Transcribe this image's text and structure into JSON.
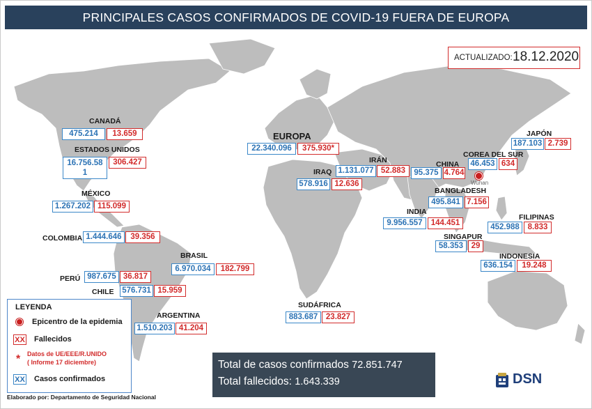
{
  "header": {
    "title": "PRINCIPALES CASOS CONFIRMADOS DE COVID-19 FUERA DE EUROPA"
  },
  "update": {
    "label": "ACTUALIZADO:",
    "date": "18.12.2020"
  },
  "regions": {
    "canada": {
      "name": "CANADÁ",
      "cases": "475.214",
      "deaths": "13.659"
    },
    "usa": {
      "name": "ESTADOS UNIDOS",
      "cases": "16.756.58",
      "cases_cont": "1",
      "deaths": "306.427"
    },
    "mexico": {
      "name": "MÉXICO",
      "cases": "1.267.202",
      "deaths": "115.099"
    },
    "colombia": {
      "name": "COLOMBIA",
      "cases": "1.444.646",
      "deaths": "39.356"
    },
    "brasil": {
      "name": "BRASIL",
      "cases": "6.970.034",
      "deaths": "182.799"
    },
    "peru": {
      "name": "PERÚ",
      "cases": "987.675",
      "deaths": "36.817"
    },
    "chile": {
      "name": "CHILE",
      "cases": "576.731",
      "deaths": "15.959"
    },
    "argentina": {
      "name": "ARGENTINA",
      "cases": "1.510.203",
      "deaths": "41.204"
    },
    "europa": {
      "name": "EUROPA",
      "cases": "22.340.096",
      "deaths": "375.930*"
    },
    "iraq": {
      "name": "IRAQ",
      "cases": "578.916",
      "deaths": "12.636"
    },
    "iran": {
      "name": "IRÁN",
      "cases": "1.131.077",
      "deaths": "52.883"
    },
    "sudafrica": {
      "name": "SUDÁFRICA",
      "cases": "883.687",
      "deaths": "23.827"
    },
    "china": {
      "name": "CHINA",
      "cases": "95.375",
      "deaths": "4.764"
    },
    "corea": {
      "name": "COREA DEL SUR",
      "cases": "46.453",
      "deaths": "634"
    },
    "japon": {
      "name": "JAPÓN",
      "cases": "187.103",
      "deaths": "2.739"
    },
    "bangladesh": {
      "name": "BANGLADESH",
      "cases": "495.841",
      "deaths": "7.156"
    },
    "india": {
      "name": "INDIA",
      "cases": "9.956.557",
      "deaths": "144.451"
    },
    "filipinas": {
      "name": "FILIPINAS",
      "cases": "452.988",
      "deaths": "8.833"
    },
    "singapur": {
      "name": "SINGAPUR",
      "cases": "58.353",
      "deaths": "29"
    },
    "indonesia": {
      "name": "INDONESIA",
      "cases": "636.154",
      "deaths": "19.248"
    }
  },
  "epicenter_label": "Wuhan",
  "legend": {
    "title": "LEYENDA",
    "epicenter": "Epicentro de la epidemia",
    "deaths_swatch": "XX",
    "deaths": "Fallecidos",
    "asterisk": "*",
    "note_line1": "Datos de UE/EEE/R.UNIDO",
    "note_line2": "( Informe 17 diciembre)",
    "cases_swatch": "XX",
    "cases": "Casos confirmados"
  },
  "totals": {
    "cases_label": "Total de casos confirmados",
    "cases_value": "72.851.747",
    "deaths_label": "Total fallecidos:",
    "deaths_value": "1.643.339"
  },
  "footer": {
    "credit": "Elaborado por: Departamento de Seguridad Nacional",
    "logo_text": "DSN"
  },
  "colors": {
    "title_bg": "#29415c",
    "land": "#bdbdbd",
    "cases": "#2c73b5",
    "deaths": "#d22b2b",
    "totals_bg": "#394755"
  }
}
